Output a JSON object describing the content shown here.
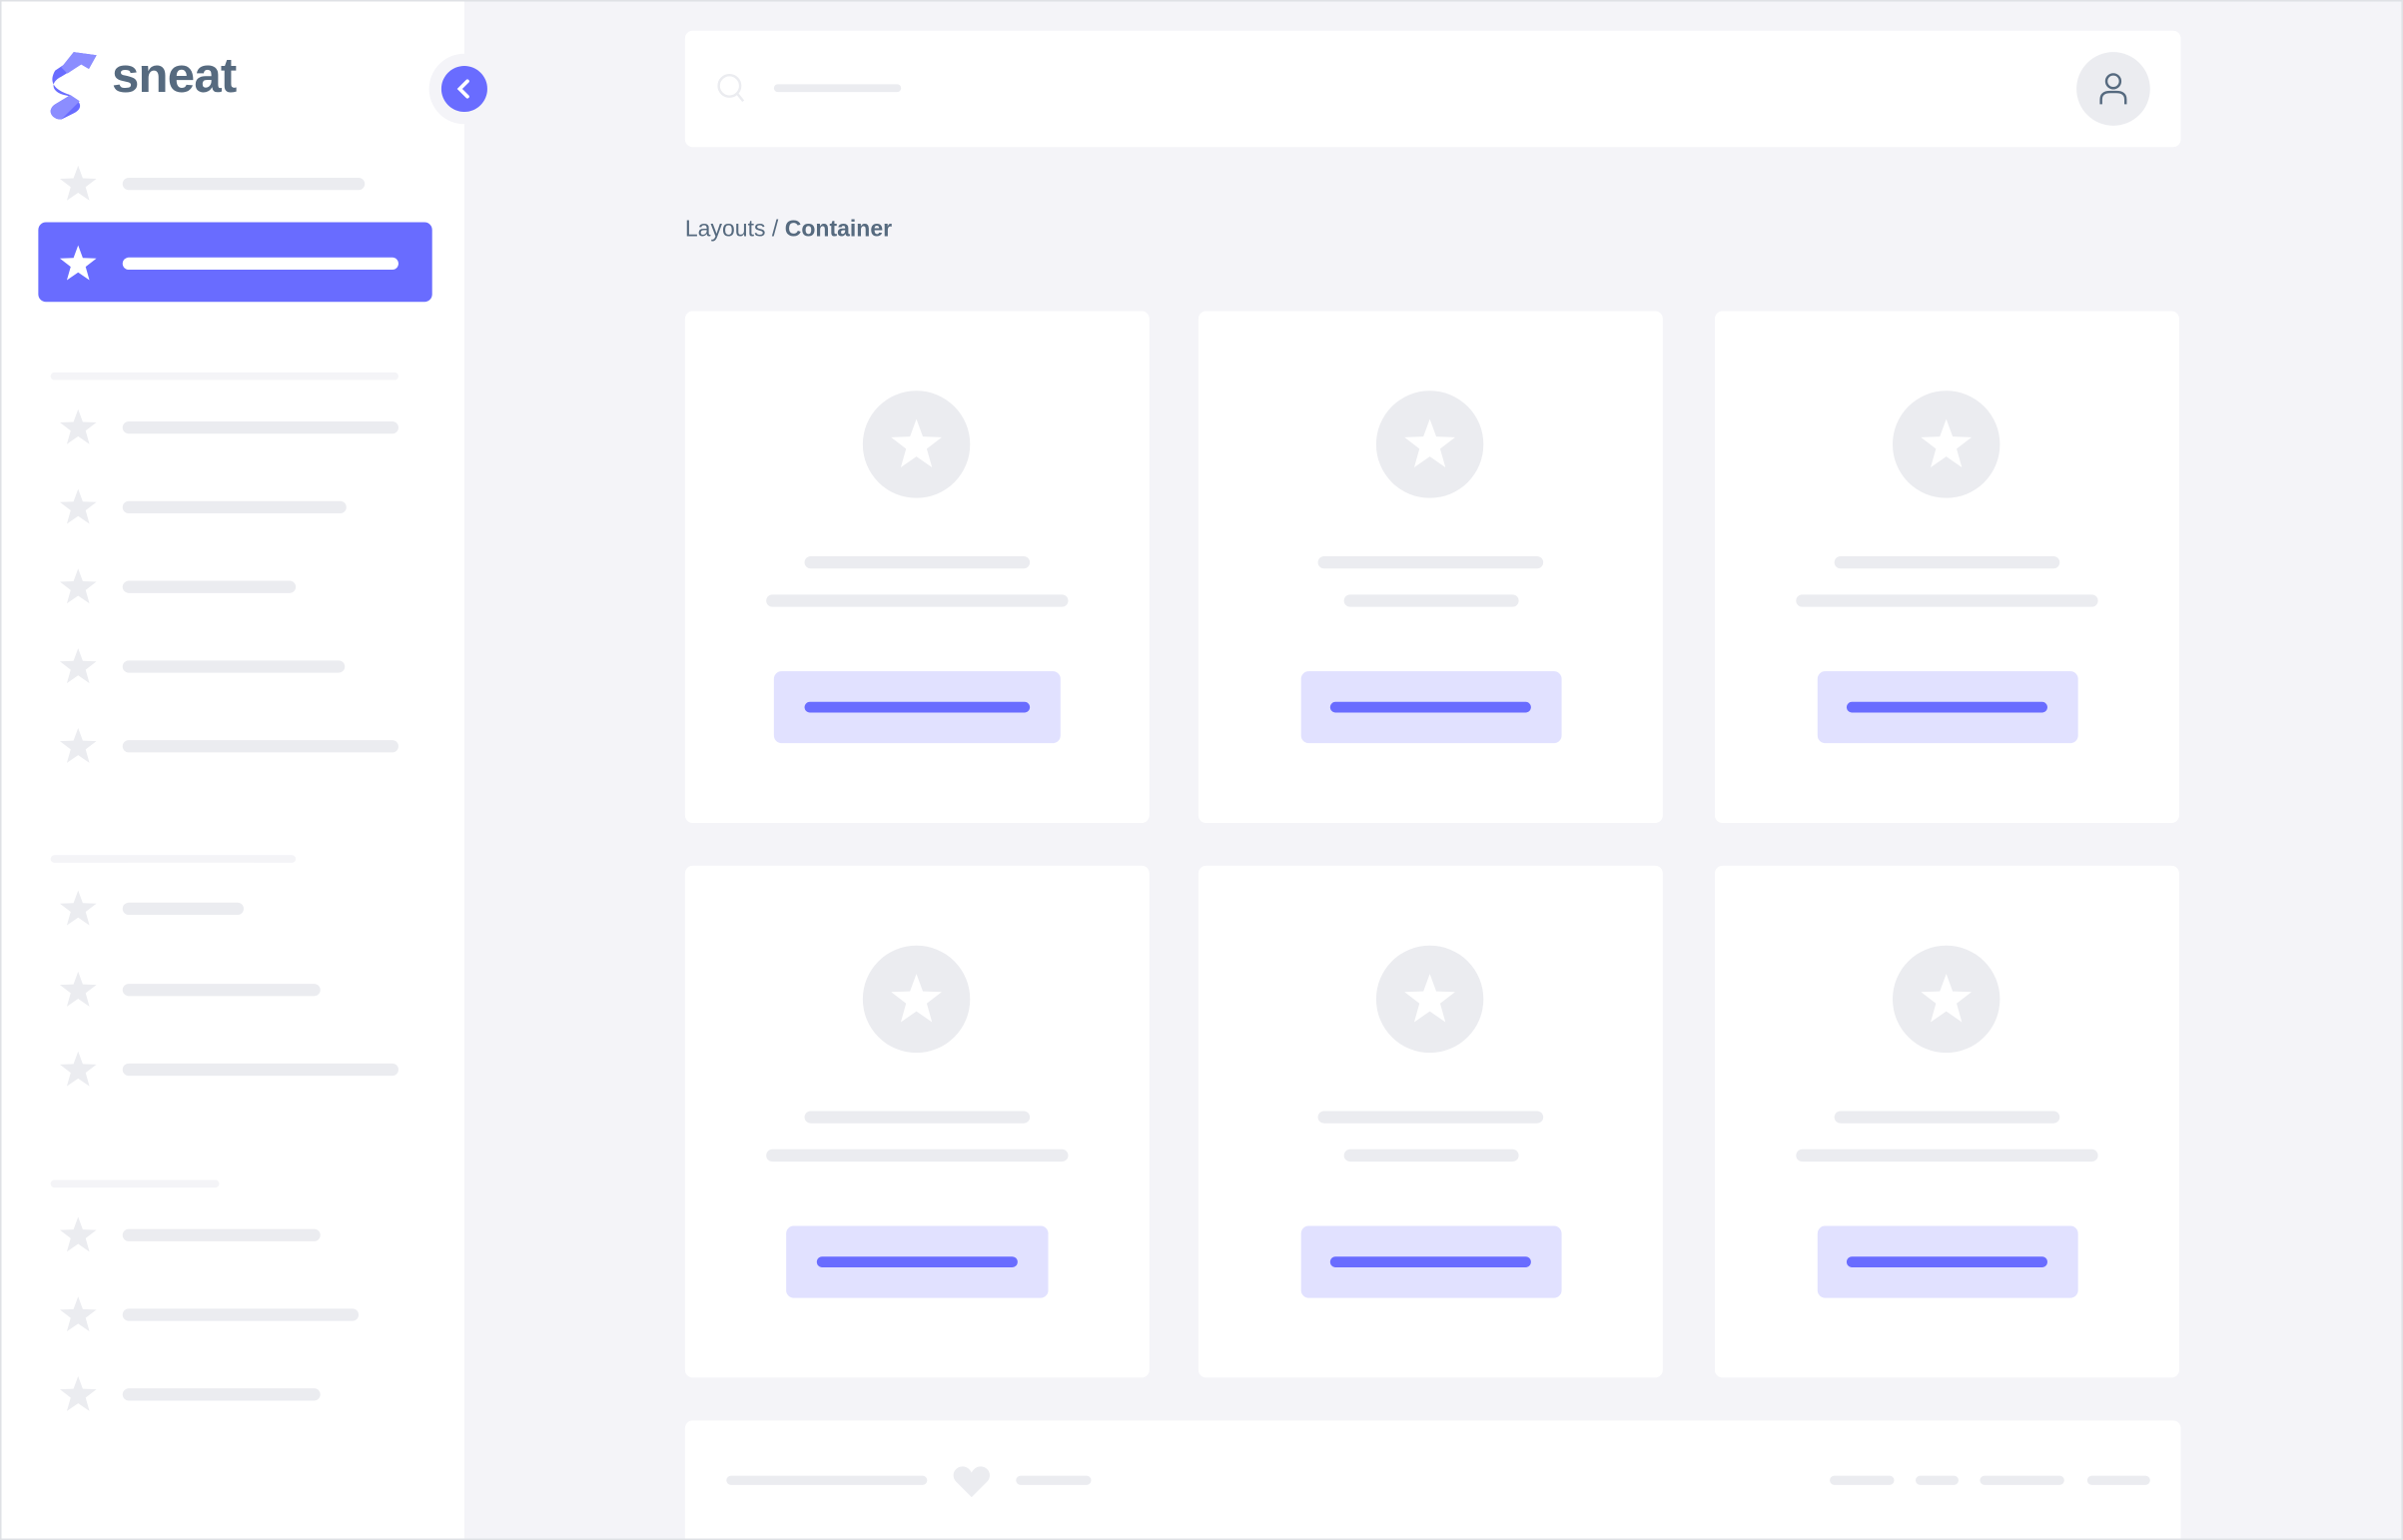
{
  "brand": {
    "name": "sneat",
    "icon": "sneat-logo"
  },
  "colors": {
    "primary": "#696cff",
    "primary_light": "#e1e1ff",
    "skeleton": "#ebecf0",
    "text": "#566a7f",
    "background": "#f4f4f8"
  },
  "sidebar": {
    "active_index": 1,
    "collapse_icon": "chevron-left-icon"
  },
  "navbar": {
    "search_icon": "search-icon",
    "avatar_icon": "user-icon"
  },
  "breadcrumb": {
    "parent": "Layouts",
    "separator": " / ",
    "current": "Container"
  },
  "cards": {
    "count": 6,
    "icon": "star-icon"
  },
  "footer": {
    "icon": "heart-icon"
  }
}
